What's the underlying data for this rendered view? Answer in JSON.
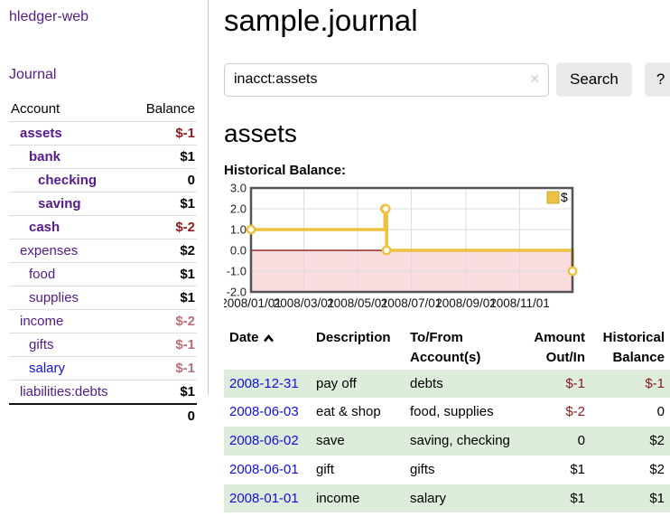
{
  "colors": {
    "link_purple": "#551a8b",
    "link_blue": "#1010dd",
    "negative_strong": "#8b1c1c",
    "negative_soft": "#bb7077",
    "row_shade_green": "#ddecdb",
    "series_gold": "#edc240",
    "chart_negative_region": "#fbdde0",
    "chart_zero_line": "#8b0000",
    "chart_border": "#545454",
    "chart_grid": "#dddddd"
  },
  "brand": "hledger-web",
  "nav": {
    "journal": "Journal"
  },
  "page": {
    "title": "sample.journal"
  },
  "search": {
    "query": "inacct:assets",
    "clear_icon": "✕",
    "button_label": "Search",
    "help_label": "?"
  },
  "account_page": {
    "heading": "assets",
    "chart_label": "Historical Balance:"
  },
  "sidebar_accounts": {
    "headers": {
      "account": "Account",
      "balance": "Balance"
    },
    "rows": [
      {
        "name": "assets",
        "balance": "$-1",
        "level": 0,
        "bold": true,
        "neg": "strong"
      },
      {
        "name": "bank",
        "balance": "$1",
        "level": 1,
        "bold": true
      },
      {
        "name": "checking",
        "balance": "0",
        "level": 2,
        "bold": true
      },
      {
        "name": "saving",
        "balance": "$1",
        "level": 2,
        "bold": true
      },
      {
        "name": "cash",
        "balance": "$-2",
        "level": 1,
        "bold": true,
        "neg": "strong"
      },
      {
        "name": "expenses",
        "balance": "$2",
        "level": 0
      },
      {
        "name": "food",
        "balance": "$1",
        "level": 1
      },
      {
        "name": "supplies",
        "balance": "$1",
        "level": 1
      },
      {
        "name": "income",
        "balance": "$-2",
        "level": 0,
        "neg": "soft"
      },
      {
        "name": "gifts",
        "balance": "$-1",
        "level": 1,
        "neg": "soft"
      },
      {
        "name": "salary",
        "balance": "$-1",
        "level": 1,
        "neg": "soft",
        "link": "blue"
      },
      {
        "name": "liabilities:debts",
        "balance": "$1",
        "level": 0
      }
    ],
    "total": "0"
  },
  "register": {
    "headers": {
      "date": "Date",
      "description": "Description",
      "tofrom": "To/From Account(s)",
      "amount": "Amount Out/In",
      "balance": "Historical Balance"
    },
    "rows": [
      {
        "date": "2008-12-31",
        "description": "pay off",
        "tofrom": "debts",
        "amount": "$-1",
        "amount_neg": true,
        "balance": "$-1",
        "balance_neg": true,
        "shaded": true
      },
      {
        "date": "2008-06-03",
        "description": "eat & shop",
        "tofrom": "food, supplies",
        "amount": "$-2",
        "amount_neg": true,
        "balance": "0"
      },
      {
        "date": "2008-06-02",
        "description": "save",
        "tofrom": "saving, checking",
        "amount": "0",
        "balance": "$2",
        "shaded": true
      },
      {
        "date": "2008-06-01",
        "description": "gift",
        "tofrom": "gifts",
        "amount": "$1",
        "balance": "$2"
      },
      {
        "date": "2008-01-01",
        "description": "income",
        "tofrom": "salary",
        "amount": "$1",
        "balance": "$1",
        "shaded": true
      }
    ]
  },
  "chart_data": {
    "type": "line",
    "step": true,
    "title": "Historical Balance:",
    "series": [
      {
        "name": "$",
        "color": "#edc240",
        "points": [
          [
            "2008-01-01",
            1
          ],
          [
            "2008-06-01",
            2
          ],
          [
            "2008-06-02",
            2
          ],
          [
            "2008-06-03",
            0
          ],
          [
            "2008-12-31",
            -1
          ]
        ]
      }
    ],
    "ylim": [
      -2,
      3
    ],
    "yticks": [
      3.0,
      2.0,
      1.0,
      0.0,
      -1.0,
      -2.0
    ],
    "xticks": [
      "2008/01/01",
      "2008/03/01",
      "2008/05/01",
      "2008/07/01",
      "2008/09/01",
      "2008/11/01"
    ],
    "x_range": [
      "2008-01-01",
      "2008-12-31"
    ],
    "negative_region": {
      "from": 0,
      "to": -2,
      "color": "#fbdde0"
    },
    "zero_line_color": "#8b0000",
    "legend": {
      "label": "$",
      "position": "top-right"
    },
    "grid": true
  }
}
